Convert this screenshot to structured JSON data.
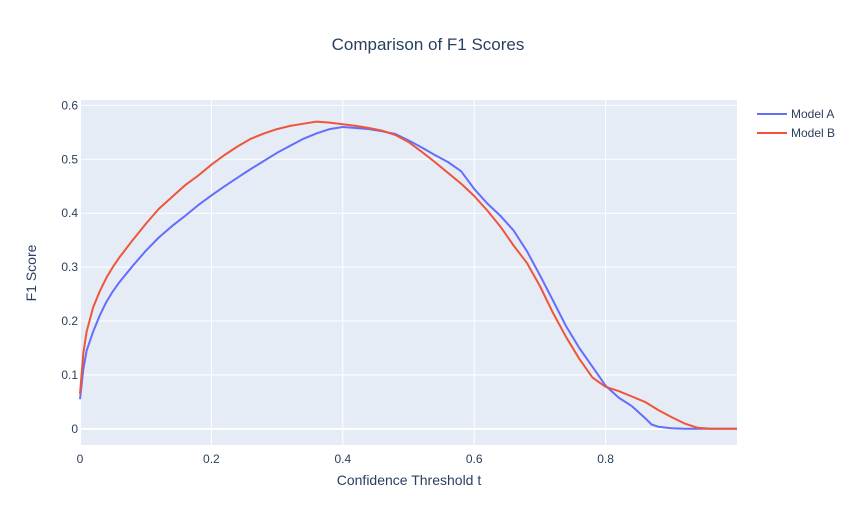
{
  "chart_data": {
    "type": "line",
    "title": "Comparison of F1 Scores",
    "xlabel": "Confidence Threshold t",
    "ylabel": "F1 Score",
    "xlim": [
      0,
      1
    ],
    "ylim": [
      -0.03,
      0.61
    ],
    "x_ticks": [
      0,
      0.2,
      0.4,
      0.6,
      0.8
    ],
    "x_tick_labels": [
      "0",
      "0.2",
      "0.4",
      "0.6",
      "0.8"
    ],
    "y_ticks": [
      0,
      0.1,
      0.2,
      0.3,
      0.4,
      0.5,
      0.6
    ],
    "y_tick_labels": [
      "0",
      "0.1",
      "0.2",
      "0.3",
      "0.4",
      "0.5",
      "0.6"
    ],
    "grid": true,
    "legend_position": "top-right",
    "colors": {
      "plot_bg": "#e5ecf6",
      "grid": "#ffffff",
      "text": "#2a3f5f"
    },
    "series": [
      {
        "name": "Model A",
        "color": "#636efa",
        "x": [
          0.0,
          0.005,
          0.01,
          0.02,
          0.03,
          0.04,
          0.05,
          0.06,
          0.08,
          0.1,
          0.12,
          0.14,
          0.16,
          0.18,
          0.2,
          0.22,
          0.24,
          0.26,
          0.28,
          0.3,
          0.32,
          0.34,
          0.36,
          0.38,
          0.4,
          0.42,
          0.44,
          0.46,
          0.48,
          0.5,
          0.52,
          0.54,
          0.56,
          0.58,
          0.6,
          0.62,
          0.64,
          0.66,
          0.68,
          0.7,
          0.72,
          0.74,
          0.76,
          0.78,
          0.8,
          0.82,
          0.84,
          0.86,
          0.87,
          0.88,
          0.9,
          0.92,
          0.94,
          0.96,
          0.98,
          1.0
        ],
        "y": [
          0.055,
          0.11,
          0.145,
          0.18,
          0.21,
          0.235,
          0.255,
          0.272,
          0.302,
          0.33,
          0.355,
          0.376,
          0.395,
          0.415,
          0.433,
          0.45,
          0.466,
          0.482,
          0.497,
          0.512,
          0.525,
          0.538,
          0.548,
          0.556,
          0.56,
          0.558,
          0.556,
          0.552,
          0.547,
          0.535,
          0.522,
          0.508,
          0.495,
          0.478,
          0.445,
          0.418,
          0.395,
          0.368,
          0.33,
          0.285,
          0.238,
          0.19,
          0.15,
          0.115,
          0.08,
          0.058,
          0.042,
          0.02,
          0.008,
          0.004,
          0.001,
          0.0,
          0.0,
          0.0,
          0.0,
          0.0
        ]
      },
      {
        "name": "Model B",
        "color": "#ef553b",
        "x": [
          0.0,
          0.005,
          0.01,
          0.02,
          0.03,
          0.04,
          0.05,
          0.06,
          0.08,
          0.1,
          0.12,
          0.14,
          0.16,
          0.18,
          0.2,
          0.22,
          0.24,
          0.26,
          0.28,
          0.3,
          0.32,
          0.34,
          0.36,
          0.38,
          0.4,
          0.42,
          0.44,
          0.46,
          0.48,
          0.5,
          0.52,
          0.54,
          0.56,
          0.58,
          0.6,
          0.62,
          0.64,
          0.66,
          0.68,
          0.7,
          0.72,
          0.74,
          0.76,
          0.78,
          0.8,
          0.82,
          0.84,
          0.86,
          0.88,
          0.9,
          0.92,
          0.94,
          0.96,
          0.98,
          1.0
        ],
        "y": [
          0.065,
          0.14,
          0.18,
          0.225,
          0.255,
          0.28,
          0.3,
          0.318,
          0.35,
          0.38,
          0.408,
          0.43,
          0.452,
          0.47,
          0.49,
          0.508,
          0.524,
          0.538,
          0.548,
          0.556,
          0.562,
          0.566,
          0.57,
          0.568,
          0.565,
          0.562,
          0.558,
          0.553,
          0.545,
          0.532,
          0.514,
          0.495,
          0.475,
          0.455,
          0.432,
          0.405,
          0.375,
          0.34,
          0.308,
          0.265,
          0.215,
          0.17,
          0.13,
          0.095,
          0.078,
          0.07,
          0.06,
          0.05,
          0.035,
          0.022,
          0.01,
          0.002,
          0.0,
          0.0,
          0.0
        ]
      }
    ]
  }
}
